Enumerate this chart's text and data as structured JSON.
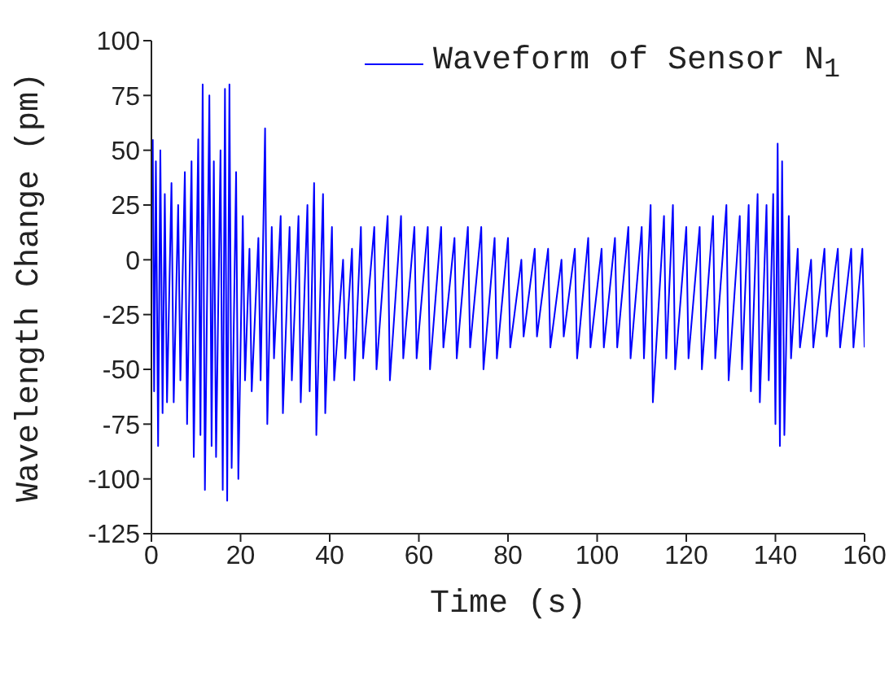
{
  "chart_data": {
    "type": "line",
    "xlabel": "Time (s)",
    "ylabel": "Wavelength Change (pm)",
    "x": [
      0.3,
      0.6,
      1,
      1.5,
      2,
      2.5,
      3,
      3.5,
      4.5,
      5,
      6,
      6.5,
      7.5,
      8,
      9,
      9.5,
      10.5,
      11,
      11.5,
      12,
      13,
      13.5,
      14,
      14.5,
      15.5,
      16,
      16.5,
      17,
      17.5,
      18,
      19,
      19.5,
      20.5,
      21,
      22,
      22.5,
      24,
      24.5,
      25.5,
      26,
      27,
      27.5,
      29,
      29.5,
      31,
      31.5,
      33,
      33.5,
      35,
      35.5,
      36.5,
      37,
      38.5,
      39,
      40.5,
      41,
      43,
      43.5,
      45,
      45.5,
      47,
      47.5,
      50,
      50.5,
      53,
      53.5,
      56,
      56.5,
      59,
      59.5,
      62,
      62.5,
      65,
      65.5,
      68,
      68.5,
      71,
      71.5,
      74,
      74.5,
      77,
      77.5,
      80,
      80.5,
      83,
      83.5,
      86,
      86.5,
      89,
      89.5,
      92,
      92.5,
      95,
      95.5,
      98,
      98.5,
      101,
      101.5,
      104,
      104.5,
      107,
      107.5,
      110,
      110.5,
      112,
      112.5,
      115,
      115.5,
      117,
      117.5,
      120,
      120.5,
      123,
      123.5,
      126,
      126.5,
      129,
      129.5,
      132,
      132.5,
      134,
      134.5,
      136,
      136.5,
      138,
      138.5,
      139.5,
      140,
      140.5,
      141,
      141.5,
      142,
      143,
      143.5,
      145,
      145.5,
      148,
      148.5,
      151,
      151.5,
      154,
      154.5,
      157,
      157.5,
      159.5,
      160
    ],
    "series": [
      {
        "name": "Waveform of Sensor N$_{1}$",
        "color": "#0000ff",
        "values": [
          55,
          -60,
          45,
          -85,
          50,
          -70,
          30,
          -65,
          35,
          -65,
          25,
          -55,
          40,
          -75,
          45,
          -90,
          55,
          -80,
          80,
          -105,
          75,
          -85,
          45,
          -90,
          50,
          -105,
          78,
          -110,
          80,
          -95,
          40,
          -100,
          20,
          -55,
          5,
          -60,
          10,
          -55,
          60,
          -75,
          15,
          -45,
          20,
          -70,
          15,
          -55,
          20,
          -65,
          25,
          -60,
          35,
          -80,
          30,
          -70,
          15,
          -55,
          0,
          -45,
          5,
          -55,
          15,
          -45,
          15,
          -50,
          20,
          -55,
          20,
          -45,
          15,
          -45,
          15,
          -50,
          15,
          -40,
          10,
          -45,
          15,
          -40,
          15,
          -50,
          10,
          -45,
          10,
          -40,
          0,
          -35,
          5,
          -35,
          5,
          -40,
          0,
          -35,
          5,
          -45,
          10,
          -40,
          5,
          -40,
          10,
          -40,
          15,
          -45,
          15,
          -45,
          25,
          -65,
          20,
          -45,
          25,
          -50,
          15,
          -45,
          15,
          -50,
          20,
          -45,
          25,
          -55,
          20,
          -50,
          25,
          -60,
          30,
          -65,
          25,
          -55,
          30,
          -75,
          53,
          -85,
          45,
          -80,
          20,
          -45,
          5,
          -40,
          0,
          -40,
          5,
          -35,
          5,
          -40,
          5,
          -40,
          5,
          -40
        ]
      }
    ],
    "xlim": [
      0,
      160
    ],
    "xticks": [
      0,
      20,
      40,
      60,
      80,
      100,
      120,
      140,
      160
    ],
    "ylim": [
      -125,
      100
    ],
    "yticks": [
      -125,
      -100,
      -75,
      -50,
      -25,
      0,
      25,
      50,
      75,
      100
    ],
    "grid": false,
    "legend": "top right",
    "marker": "none",
    "line_style": "solid"
  }
}
